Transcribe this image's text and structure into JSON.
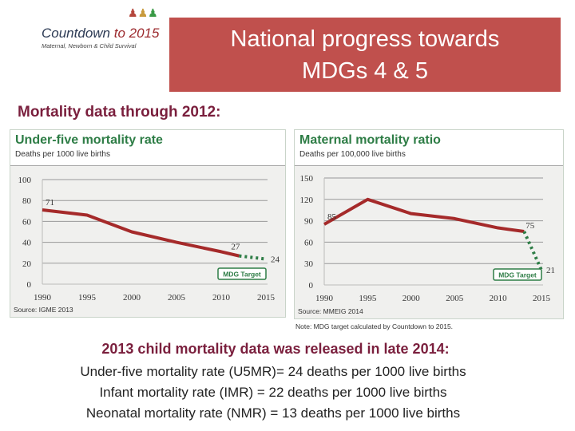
{
  "logo": {
    "name_a": "Countdown",
    "name_b": "to 2015",
    "tagline": "Maternal, Newborn & Child Survival"
  },
  "header": {
    "title_line1": "National progress towards",
    "title_line2": "MDGs 4 & 5"
  },
  "subheading": "Mortality data through 2012:",
  "colors": {
    "title_bg": "#c0504d",
    "line": "#a52a2a",
    "target": "#2e7d46",
    "heading": "#7a1f3d"
  },
  "chart_data": [
    {
      "type": "line",
      "title": "Under-five mortality rate",
      "ylabel": "Deaths per 1000 live births",
      "source": "Source: IGME 2013",
      "ylim": [
        0,
        100
      ],
      "yticks": [
        "0",
        "20",
        "40",
        "60",
        "80",
        "100"
      ],
      "xticks": [
        "1990",
        "1995",
        "2000",
        "2005",
        "2010",
        "2015"
      ],
      "xlim": [
        1990,
        2015
      ],
      "grid": true,
      "series": [
        {
          "x": [
            1990,
            1995,
            2000,
            2005,
            2010,
            2012
          ],
          "y": [
            71,
            66,
            50,
            40,
            31,
            27
          ]
        }
      ],
      "target": {
        "x": [
          2012,
          2015
        ],
        "y": [
          27,
          24
        ],
        "label": "MDG Target"
      },
      "labels": [
        {
          "x": 1990,
          "y": 71,
          "text": "71"
        },
        {
          "x": 2012,
          "y": 27,
          "text": "27"
        },
        {
          "x": 2015,
          "y": 24,
          "text": "24"
        }
      ]
    },
    {
      "type": "line",
      "title": "Maternal mortality ratio",
      "ylabel": "Deaths per 100,000 live births",
      "source": "Source: MMEIG 2014",
      "ylim": [
        0,
        150
      ],
      "yticks": [
        "0",
        "30",
        "60",
        "90",
        "120",
        "150"
      ],
      "xticks": [
        "1990",
        "1995",
        "2000",
        "2005",
        "2010",
        "2015"
      ],
      "xlim": [
        1990,
        2015
      ],
      "grid": true,
      "series": [
        {
          "x": [
            1990,
            1995,
            2000,
            2005,
            2010,
            2013
          ],
          "y": [
            85,
            120,
            100,
            93,
            80,
            75
          ]
        }
      ],
      "target": {
        "x": [
          2013,
          2015
        ],
        "y": [
          75,
          21
        ],
        "label": "MDG Target"
      },
      "labels": [
        {
          "x": 1990,
          "y": 85,
          "text": "85"
        },
        {
          "x": 2013,
          "y": 75,
          "text": "75"
        },
        {
          "x": 2015,
          "y": 21,
          "text": "21"
        }
      ]
    }
  ],
  "note": "Note: MDG target calculated by Countdown to 2015.",
  "info": {
    "title": "2013 child mortality data was released in late 2014:",
    "lines": [
      "Under-five mortality rate (U5MR)= 24 deaths per 1000 live births",
      "Infant mortality rate (IMR) = 22 deaths per 1000 live births",
      "Neonatal mortality rate (NMR) = 13 deaths per 1000 live births"
    ]
  }
}
